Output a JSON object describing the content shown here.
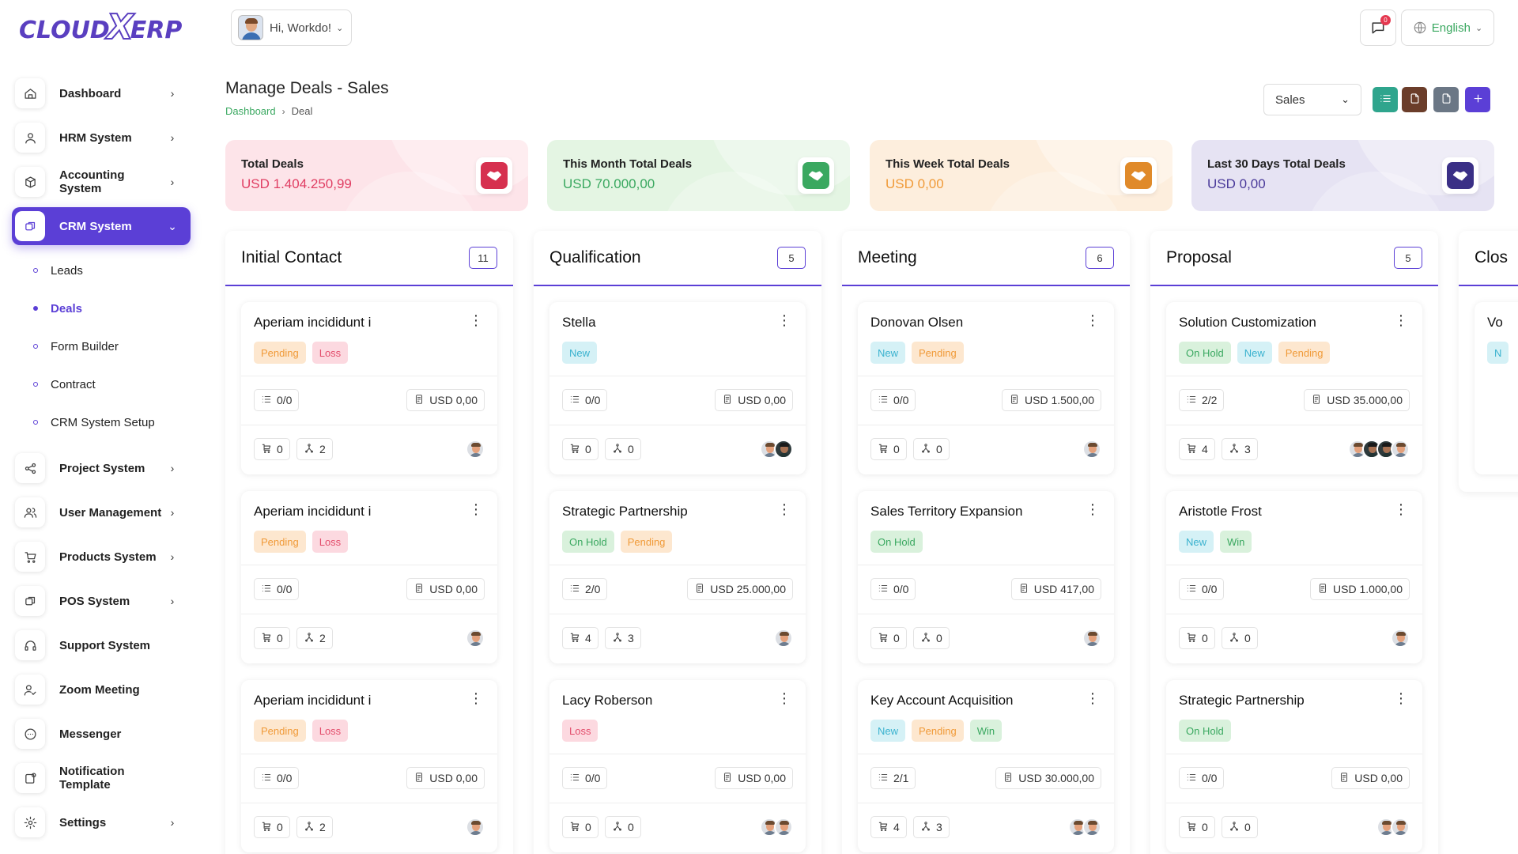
{
  "app": {
    "logo_left": "CLOUD",
    "logo_x": "X",
    "logo_right": "ERP"
  },
  "header": {
    "greeting": "Hi, Workdo!",
    "notification_count": "0",
    "language": "English"
  },
  "sidebar": {
    "items": [
      {
        "label": "Dashboard",
        "icon": "home-icon",
        "has_arrow": true
      },
      {
        "label": "HRM System",
        "icon": "user-icon",
        "has_arrow": true
      },
      {
        "label": "Accounting System",
        "icon": "box-icon",
        "has_arrow": true
      },
      {
        "label": "CRM System",
        "icon": "layers-icon",
        "has_arrow": true,
        "active": true
      }
    ],
    "crm_subitems": [
      {
        "label": "Leads"
      },
      {
        "label": "Deals",
        "active": true
      },
      {
        "label": "Form Builder"
      },
      {
        "label": "Contract"
      },
      {
        "label": "CRM System Setup"
      }
    ],
    "items_after": [
      {
        "label": "Project System",
        "icon": "share-icon",
        "has_arrow": true
      },
      {
        "label": "User Management",
        "icon": "users-icon",
        "has_arrow": true
      },
      {
        "label": "Products System",
        "icon": "cart-icon",
        "has_arrow": true
      },
      {
        "label": "POS System",
        "icon": "layers-icon",
        "has_arrow": true
      },
      {
        "label": "Support System",
        "icon": "headset-icon",
        "has_arrow": false
      },
      {
        "label": "Zoom Meeting",
        "icon": "user-check-icon",
        "has_arrow": false
      },
      {
        "label": "Messenger",
        "icon": "message-icon",
        "has_arrow": false
      },
      {
        "label": "Notification Template",
        "icon": "notification-icon",
        "has_arrow": false
      },
      {
        "label": "Settings",
        "icon": "gear-icon",
        "has_arrow": true
      }
    ]
  },
  "page": {
    "title": "Manage Deals - Sales",
    "breadcrumb": [
      "Dashboard",
      "Deal"
    ],
    "pipeline_select": "Sales",
    "tools": [
      {
        "icon": "list-icon",
        "color": "#2fa58d"
      },
      {
        "icon": "export-icon",
        "color": "#6b3d2a"
      },
      {
        "icon": "import-icon",
        "color": "#6b7785"
      },
      {
        "icon": "plus-icon",
        "color": "#5b3fd6"
      }
    ]
  },
  "stats": [
    {
      "title": "Total Deals",
      "value": "USD 1.404.250,99",
      "bg": "#fde4e9",
      "accent": "#e03e63",
      "icon_bg": "#d6304f"
    },
    {
      "title": "This Month Total Deals",
      "value": "USD 70.000,00",
      "bg": "#e4f5e3",
      "accent": "#3aa860",
      "icon_bg": "#3aa860"
    },
    {
      "title": "This Week Total Deals",
      "value": "USD 0,00",
      "bg": "#fdeedd",
      "accent": "#f09a38",
      "icon_bg": "#e08a2a"
    },
    {
      "title": "Last 30 Days Total Deals",
      "value": "USD 0,00",
      "bg": "#e6e3f3",
      "accent": "#4a3a9a",
      "icon_bg": "#3a2f86"
    }
  ],
  "columns": [
    {
      "title": "Initial Contact",
      "count": "11",
      "cards": [
        {
          "title": "Aperiam incididunt i",
          "tags": [
            {
              "t": "Pending",
              "k": "pending"
            },
            {
              "t": "Loss",
              "k": "loss"
            }
          ],
          "tasks": "0/0",
          "price": "USD 0,00",
          "products": "0",
          "sources": "2",
          "avatars": [
            "light"
          ]
        },
        {
          "title": "Aperiam incididunt i",
          "tags": [
            {
              "t": "Pending",
              "k": "pending"
            },
            {
              "t": "Loss",
              "k": "loss"
            }
          ],
          "tasks": "0/0",
          "price": "USD 0,00",
          "products": "0",
          "sources": "2",
          "avatars": [
            "light"
          ]
        },
        {
          "title": "Aperiam incididunt i",
          "tags": [
            {
              "t": "Pending",
              "k": "pending"
            },
            {
              "t": "Loss",
              "k": "loss"
            }
          ],
          "tasks": "0/0",
          "price": "USD 0,00",
          "products": "0",
          "sources": "2",
          "avatars": [
            "light"
          ]
        }
      ]
    },
    {
      "title": "Qualification",
      "count": "5",
      "cards": [
        {
          "title": "Stella",
          "tags": [
            {
              "t": "New",
              "k": "new"
            }
          ],
          "tasks": "0/0",
          "price": "USD 0,00",
          "products": "0",
          "sources": "0",
          "avatars": [
            "light",
            "dark"
          ]
        },
        {
          "title": "Strategic Partnership",
          "tags": [
            {
              "t": "On Hold",
              "k": "onhold"
            },
            {
              "t": "Pending",
              "k": "pending"
            }
          ],
          "tasks": "2/0",
          "price": "USD 25.000,00",
          "products": "4",
          "sources": "3",
          "avatars": [
            "light"
          ]
        },
        {
          "title": "Lacy Roberson",
          "tags": [
            {
              "t": "Loss",
              "k": "loss"
            }
          ],
          "tasks": "0/0",
          "price": "USD 0,00",
          "products": "0",
          "sources": "0",
          "avatars": [
            "light",
            "light"
          ]
        }
      ]
    },
    {
      "title": "Meeting",
      "count": "6",
      "cards": [
        {
          "title": "Donovan Olsen",
          "tags": [
            {
              "t": "New",
              "k": "new"
            },
            {
              "t": "Pending",
              "k": "pending"
            }
          ],
          "tasks": "0/0",
          "price": "USD 1.500,00",
          "products": "0",
          "sources": "0",
          "avatars": [
            "light"
          ]
        },
        {
          "title": "Sales Territory Expansion",
          "tags": [
            {
              "t": "On Hold",
              "k": "onhold"
            }
          ],
          "tasks": "0/0",
          "price": "USD 417,00",
          "products": "0",
          "sources": "0",
          "avatars": [
            "light"
          ]
        },
        {
          "title": "Key Account Acquisition",
          "tags": [
            {
              "t": "New",
              "k": "new"
            },
            {
              "t": "Pending",
              "k": "pending"
            },
            {
              "t": "Win",
              "k": "win"
            }
          ],
          "tasks": "2/1",
          "price": "USD 30.000,00",
          "products": "4",
          "sources": "3",
          "avatars": [
            "light",
            "light"
          ]
        }
      ]
    },
    {
      "title": "Proposal",
      "count": "5",
      "cards": [
        {
          "title": "Solution Customization",
          "tags": [
            {
              "t": "On Hold",
              "k": "onhold"
            },
            {
              "t": "New",
              "k": "new"
            },
            {
              "t": "Pending",
              "k": "pending"
            }
          ],
          "tasks": "2/2",
          "price": "USD 35.000,00",
          "products": "4",
          "sources": "3",
          "avatars": [
            "light",
            "dark",
            "dark",
            "light"
          ]
        },
        {
          "title": "Aristotle Frost",
          "tags": [
            {
              "t": "New",
              "k": "new"
            },
            {
              "t": "Win",
              "k": "win"
            }
          ],
          "tasks": "0/0",
          "price": "USD 1.000,00",
          "products": "0",
          "sources": "0",
          "avatars": [
            "light"
          ]
        },
        {
          "title": "Strategic Partnership",
          "tags": [
            {
              "t": "On Hold",
              "k": "onhold"
            }
          ],
          "tasks": "0/0",
          "price": "USD 0,00",
          "products": "0",
          "sources": "0",
          "avatars": [
            "light",
            "light"
          ]
        }
      ]
    },
    {
      "title": "Clos",
      "count": "",
      "cards": [
        {
          "title": "Vo",
          "tags": [
            {
              "t": "N",
              "k": "new"
            }
          ],
          "tasks": "",
          "price": "",
          "products": "",
          "sources": "",
          "avatars": []
        }
      ]
    }
  ]
}
